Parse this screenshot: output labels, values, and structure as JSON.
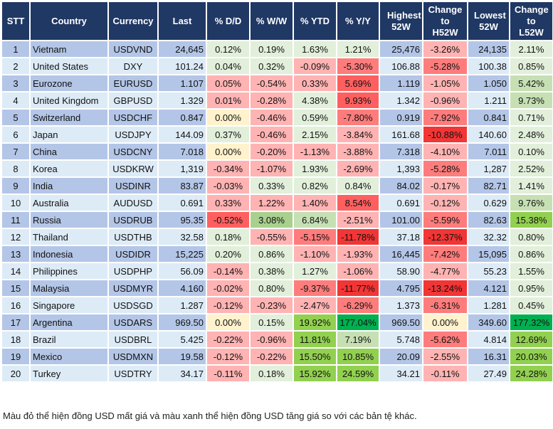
{
  "headers": [
    "STT",
    "Country",
    "Currency",
    "Last",
    "% D/D",
    "% W/W",
    "% YTD",
    "% Y/Y",
    "Highest 52W",
    "Change to H52W",
    "Lowest 52W",
    "Change to L52W"
  ],
  "colors": {
    "header": "#203864",
    "row_dark": "#b4c6e7",
    "row_light": "#ddebf7",
    "a": "#e2efda",
    "b": "#c6e0b4",
    "c": "#a9d08e",
    "d": "#92d050",
    "e": "#00b050",
    "y": "#fff2cc",
    "r": "#ffb3b3",
    "s": "#ff7c7c",
    "t": "#ff5f5f",
    "u": "#f23535"
  },
  "rows": [
    {
      "stt": "1",
      "country": "Vietnam",
      "currency": "USDVND",
      "last": "24,645",
      "dd": "0.12%",
      "ww": "0.19%",
      "ytd": "1.63%",
      "yy": "1.21%",
      "high": "25,476",
      "chh": "-3.26%",
      "low": "24,135",
      "chl": "2.11%",
      "shades": [
        "a",
        "a",
        "a",
        "a",
        "r",
        "a"
      ]
    },
    {
      "stt": "2",
      "country": "United States",
      "currency": "DXY",
      "last": "101.24",
      "dd": "0.04%",
      "ww": "0.32%",
      "ytd": "-0.09%",
      "yy": "-5.30%",
      "high": "106.88",
      "chh": "-5.28%",
      "low": "100.38",
      "chl": "0.85%",
      "shades": [
        "a",
        "a",
        "r",
        "s",
        "s",
        "a"
      ]
    },
    {
      "stt": "3",
      "country": "Eurozone",
      "currency": "EURUSD",
      "last": "1.107",
      "dd": "0.05%",
      "ww": "-0.54%",
      "ytd": "0.33%",
      "yy": "5.69%",
      "high": "1.119",
      "chh": "-1.05%",
      "low": "1.050",
      "chl": "5.42%",
      "shades": [
        "r",
        "r",
        "r",
        "t",
        "r",
        "b"
      ]
    },
    {
      "stt": "4",
      "country": "United Kingdom",
      "currency": "GBPUSD",
      "last": "1.329",
      "dd": "0.01%",
      "ww": "-0.28%",
      "ytd": "4.38%",
      "yy": "9.93%",
      "high": "1.342",
      "chh": "-0.96%",
      "low": "1.211",
      "chl": "9.73%",
      "shades": [
        "r",
        "r",
        "a",
        "t",
        "r",
        "b"
      ]
    },
    {
      "stt": "5",
      "country": "Switzerland",
      "currency": "USDCHF",
      "last": "0.847",
      "dd": "0.00%",
      "ww": "-0.46%",
      "ytd": "0.59%",
      "yy": "-7.80%",
      "high": "0.919",
      "chh": "-7.92%",
      "low": "0.841",
      "chl": "0.71%",
      "shades": [
        "y",
        "r",
        "a",
        "s",
        "s",
        "a"
      ]
    },
    {
      "stt": "6",
      "country": "Japan",
      "currency": "USDJPY",
      "last": "144.09",
      "dd": "0.37%",
      "ww": "-0.46%",
      "ytd": "2.15%",
      "yy": "-3.84%",
      "high": "161.68",
      "chh": "-10.88%",
      "low": "140.60",
      "chl": "2.48%",
      "shades": [
        "a",
        "r",
        "a",
        "r",
        "u",
        "a"
      ]
    },
    {
      "stt": "7",
      "country": "China",
      "currency": "USDCNY",
      "last": "7.018",
      "dd": "0.00%",
      "ww": "-0.20%",
      "ytd": "-1.13%",
      "yy": "-3.88%",
      "high": "7.318",
      "chh": "-4.10%",
      "low": "7.011",
      "chl": "0.10%",
      "shades": [
        "y",
        "r",
        "r",
        "r",
        "r",
        "a"
      ]
    },
    {
      "stt": "8",
      "country": "Korea",
      "currency": "USDKRW",
      "last": "1,319",
      "dd": "-0.34%",
      "ww": "-1.07%",
      "ytd": "1.93%",
      "yy": "-2.69%",
      "high": "1,393",
      "chh": "-5.28%",
      "low": "1,287",
      "chl": "2.52%",
      "shades": [
        "r",
        "r",
        "a",
        "r",
        "s",
        "a"
      ]
    },
    {
      "stt": "9",
      "country": "India",
      "currency": "USDINR",
      "last": "83.87",
      "dd": "-0.03%",
      "ww": "0.33%",
      "ytd": "0.82%",
      "yy": "0.84%",
      "high": "84.02",
      "chh": "-0.17%",
      "low": "82.71",
      "chl": "1.41%",
      "shades": [
        "r",
        "a",
        "a",
        "a",
        "r",
        "a"
      ]
    },
    {
      "stt": "10",
      "country": "Australia",
      "currency": "AUDUSD",
      "last": "0.691",
      "dd": "0.33%",
      "ww": "1.22%",
      "ytd": "1.40%",
      "yy": "8.54%",
      "high": "0.691",
      "chh": "-0.12%",
      "low": "0.629",
      "chl": "9.76%",
      "shades": [
        "r",
        "r",
        "r",
        "t",
        "r",
        "b"
      ]
    },
    {
      "stt": "11",
      "country": "Russia",
      "currency": "USDRUB",
      "last": "95.35",
      "dd": "-0.52%",
      "ww": "3.08%",
      "ytd": "6.84%",
      "yy": "-2.51%",
      "high": "101.00",
      "chh": "-5.59%",
      "low": "82.63",
      "chl": "15.38%",
      "shades": [
        "t",
        "c",
        "b",
        "r",
        "s",
        "d"
      ]
    },
    {
      "stt": "12",
      "country": "Thailand",
      "currency": "USDTHB",
      "last": "32.58",
      "dd": "0.18%",
      "ww": "-0.55%",
      "ytd": "-5.15%",
      "yy": "-11.78%",
      "high": "37.18",
      "chh": "-12.37%",
      "low": "32.32",
      "chl": "0.80%",
      "shades": [
        "a",
        "r",
        "s",
        "u",
        "u",
        "a"
      ]
    },
    {
      "stt": "13",
      "country": "Indonesia",
      "currency": "USDIDR",
      "last": "15,225",
      "dd": "0.20%",
      "ww": "0.86%",
      "ytd": "-1.10%",
      "yy": "-1.93%",
      "high": "16,445",
      "chh": "-7.42%",
      "low": "15,095",
      "chl": "0.86%",
      "shades": [
        "a",
        "a",
        "r",
        "r",
        "s",
        "a"
      ]
    },
    {
      "stt": "14",
      "country": "Philippines",
      "currency": "USDPHP",
      "last": "56.09",
      "dd": "-0.14%",
      "ww": "0.38%",
      "ytd": "1.27%",
      "yy": "-1.06%",
      "high": "58.90",
      "chh": "-4.77%",
      "low": "55.23",
      "chl": "1.55%",
      "shades": [
        "r",
        "a",
        "a",
        "r",
        "r",
        "a"
      ]
    },
    {
      "stt": "15",
      "country": "Malaysia",
      "currency": "USDMYR",
      "last": "4.160",
      "dd": "-0.02%",
      "ww": "0.80%",
      "ytd": "-9.37%",
      "yy": "-11.77%",
      "high": "4.795",
      "chh": "-13.24%",
      "low": "4.121",
      "chl": "0.95%",
      "shades": [
        "r",
        "a",
        "s",
        "u",
        "u",
        "a"
      ]
    },
    {
      "stt": "16",
      "country": "Singapore",
      "currency": "USDSGD",
      "last": "1.287",
      "dd": "-0.12%",
      "ww": "-0.23%",
      "ytd": "-2.47%",
      "yy": "-6.29%",
      "high": "1.373",
      "chh": "-6.31%",
      "low": "1.281",
      "chl": "0.45%",
      "shades": [
        "r",
        "r",
        "r",
        "s",
        "s",
        "a"
      ]
    },
    {
      "stt": "17",
      "country": "Argentina",
      "currency": "USDARS",
      "last": "969.50",
      "dd": "0.00%",
      "ww": "0.15%",
      "ytd": "19.92%",
      "yy": "177.04%",
      "high": "969.50",
      "chh": "0.00%",
      "low": "349.60",
      "chl": "177.32%",
      "shades": [
        "y",
        "a",
        "d",
        "e",
        "y",
        "e"
      ]
    },
    {
      "stt": "18",
      "country": "Brazil",
      "currency": "USDBRL",
      "last": "5.425",
      "dd": "-0.22%",
      "ww": "-0.96%",
      "ytd": "11.81%",
      "yy": "7.19%",
      "high": "5.748",
      "chh": "-5.62%",
      "low": "4.814",
      "chl": "12.69%",
      "shades": [
        "r",
        "r",
        "d",
        "b",
        "s",
        "d"
      ]
    },
    {
      "stt": "19",
      "country": "Mexico",
      "currency": "USDMXN",
      "last": "19.58",
      "dd": "-0.12%",
      "ww": "-0.22%",
      "ytd": "15.50%",
      "yy": "10.85%",
      "high": "20.09",
      "chh": "-2.55%",
      "low": "16.31",
      "chl": "20.03%",
      "shades": [
        "r",
        "r",
        "d",
        "d",
        "r",
        "d"
      ]
    },
    {
      "stt": "20",
      "country": "Turkey",
      "currency": "USDTRY",
      "last": "34.17",
      "dd": "-0.11%",
      "ww": "0.18%",
      "ytd": "15.92%",
      "yy": "24.59%",
      "high": "34.21",
      "chh": "-0.11%",
      "low": "27.49",
      "chl": "24.28%",
      "shades": [
        "r",
        "a",
        "d",
        "d",
        "r",
        "d"
      ]
    }
  ],
  "footer": "Màu đỏ thể hiện đồng USD mất giá và màu xanh thể hiện đồng USD tăng giá so với các bản tệ khác."
}
